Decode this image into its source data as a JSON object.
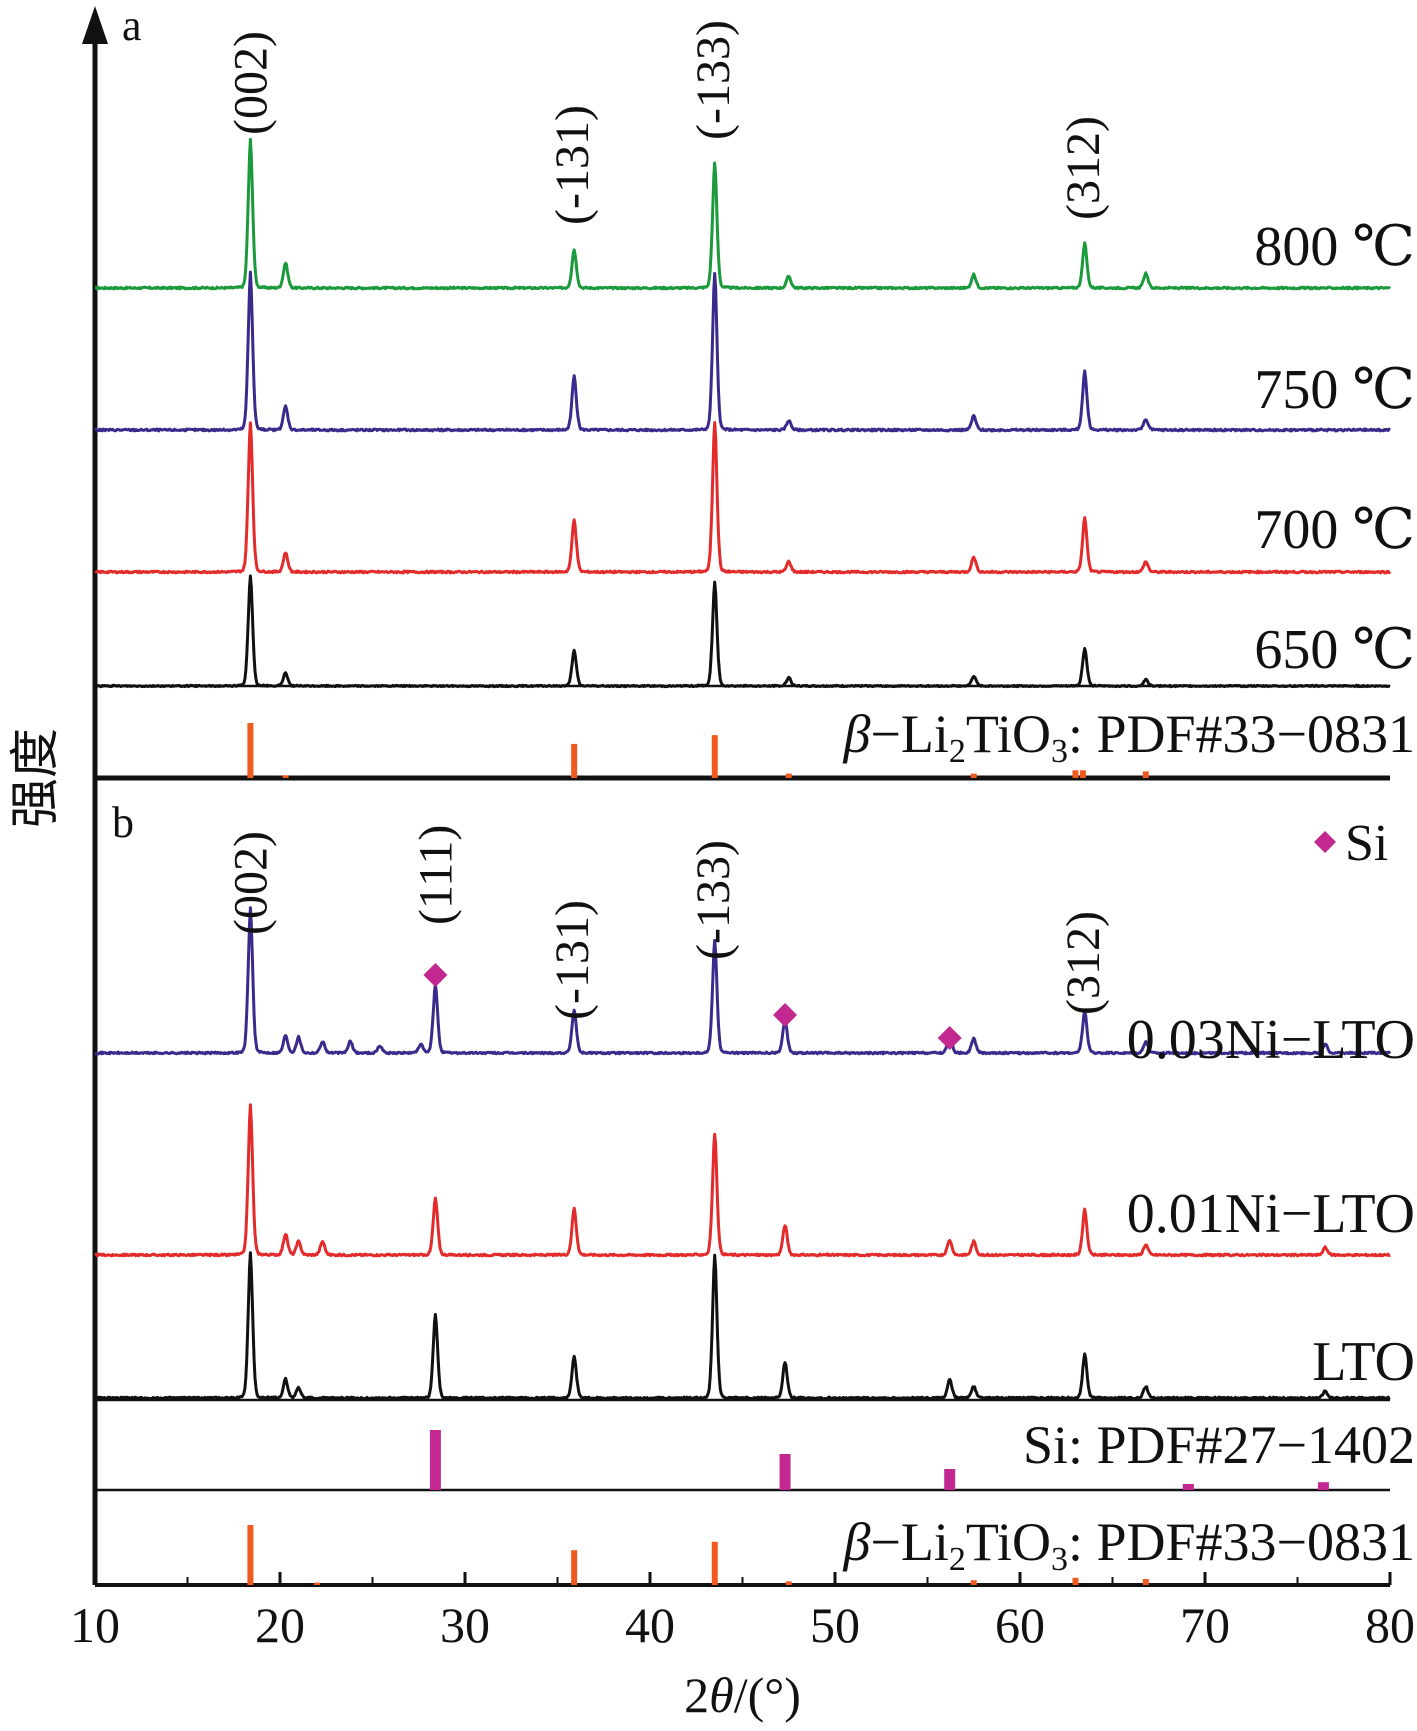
{
  "chart_data": [
    {
      "panel": "a",
      "type": "line",
      "xlabel": "2θ/(°)",
      "ylabel": "强度",
      "xlim": [
        10,
        80
      ],
      "xticks": [
        10,
        20,
        30,
        40,
        50,
        60,
        70,
        80
      ],
      "hkl_labels": [
        {
          "x": 18.5,
          "text": "(002)"
        },
        {
          "x": 35.9,
          "text": "(-131)"
        },
        {
          "x": 43.5,
          "text": "(-133)"
        },
        {
          "x": 63.5,
          "text": "(312)"
        }
      ],
      "series": [
        {
          "name": "800 ℃",
          "color": "#1a9a3a",
          "peaks": [
            [
              18.4,
              100
            ],
            [
              20.3,
              17
            ],
            [
              35.9,
              26
            ],
            [
              43.5,
              84
            ],
            [
              47.5,
              8
            ],
            [
              57.5,
              9
            ],
            [
              63.5,
              30
            ],
            [
              66.8,
              10
            ]
          ]
        },
        {
          "name": "750 ℃",
          "color": "#3b2a8c",
          "peaks": [
            [
              18.4,
              100
            ],
            [
              20.3,
              15
            ],
            [
              35.9,
              34
            ],
            [
              43.5,
              99
            ],
            [
              47.5,
              6
            ],
            [
              57.5,
              9
            ],
            [
              63.5,
              37
            ],
            [
              66.8,
              7
            ]
          ]
        },
        {
          "name": "700 ℃",
          "color": "#e32b2b",
          "peaks": [
            [
              18.4,
              100
            ],
            [
              20.3,
              13
            ],
            [
              35.9,
              35
            ],
            [
              43.5,
              100
            ],
            [
              47.5,
              7
            ],
            [
              57.5,
              10
            ],
            [
              63.5,
              36
            ],
            [
              66.8,
              7
            ]
          ]
        },
        {
          "name": "650 ℃",
          "color": "#111111",
          "peaks": [
            [
              18.4,
              100
            ],
            [
              20.3,
              12
            ],
            [
              35.9,
              32
            ],
            [
              43.5,
              94
            ],
            [
              47.5,
              8
            ],
            [
              57.5,
              9
            ],
            [
              63.5,
              34
            ],
            [
              66.8,
              6
            ]
          ]
        }
      ],
      "reference": {
        "label_prefix": "β",
        "label": "−Li",
        "sub1": "2",
        "mid": "TiO",
        "sub2": "3",
        "suffix": ": PDF#33−0831",
        "color": "#f05a1e",
        "sticks": [
          [
            18.4,
            100
          ],
          [
            20.3,
            5
          ],
          [
            35.9,
            62
          ],
          [
            43.5,
            78
          ],
          [
            47.5,
            8
          ],
          [
            57.5,
            8
          ],
          [
            63.0,
            14
          ],
          [
            63.4,
            14
          ],
          [
            66.8,
            12
          ]
        ]
      }
    },
    {
      "panel": "b",
      "type": "line",
      "xlabel": "2θ/(°)",
      "ylabel": "强度",
      "xlim": [
        10,
        80
      ],
      "xticks": [
        10,
        20,
        30,
        40,
        50,
        60,
        70,
        80
      ],
      "legend": {
        "marker": "◆",
        "text": "Si",
        "color": "#c2288f"
      },
      "hkl_labels": [
        {
          "x": 18.5,
          "text": "(002)"
        },
        {
          "x": 28.5,
          "text": "(111)"
        },
        {
          "x": 35.9,
          "text": "(-131)"
        },
        {
          "x": 43.5,
          "text": "(-133)"
        },
        {
          "x": 63.5,
          "text": "(312)"
        }
      ],
      "si_markers": [
        28.4,
        47.3,
        56.2
      ],
      "series": [
        {
          "name": "0.03Ni−LTO",
          "color": "#3b2a8c",
          "peaks": [
            [
              18.4,
              100
            ],
            [
              20.3,
              12
            ],
            [
              21.0,
              11
            ],
            [
              22.3,
              8
            ],
            [
              23.8,
              8
            ],
            [
              25.4,
              5
            ],
            [
              27.6,
              6
            ],
            [
              28.4,
              47
            ],
            [
              35.9,
              30
            ],
            [
              43.5,
              78
            ],
            [
              47.3,
              23
            ],
            [
              56.2,
              13
            ],
            [
              57.5,
              10
            ],
            [
              63.5,
              29
            ],
            [
              66.8,
              8
            ],
            [
              76.5,
              6
            ]
          ]
        },
        {
          "name": "0.01Ni−LTO",
          "color": "#e32b2b",
          "peaks": [
            [
              18.4,
              100
            ],
            [
              20.3,
              14
            ],
            [
              21.0,
              9
            ],
            [
              22.3,
              9
            ],
            [
              28.4,
              38
            ],
            [
              35.9,
              31
            ],
            [
              43.5,
              81
            ],
            [
              47.3,
              20
            ],
            [
              56.2,
              10
            ],
            [
              57.5,
              9
            ],
            [
              63.5,
              30
            ],
            [
              66.8,
              7
            ],
            [
              76.5,
              5
            ]
          ]
        },
        {
          "name": "LTO",
          "color": "#111111",
          "peaks": [
            [
              18.4,
              100
            ],
            [
              20.3,
              13
            ],
            [
              21.0,
              7
            ],
            [
              28.4,
              58
            ],
            [
              35.9,
              29
            ],
            [
              43.5,
              98
            ],
            [
              47.3,
              25
            ],
            [
              56.2,
              13
            ],
            [
              57.5,
              8
            ],
            [
              63.5,
              30
            ],
            [
              66.8,
              8
            ],
            [
              76.5,
              5
            ]
          ]
        }
      ],
      "references": [
        {
          "label": "Si: PDF#27−1402",
          "color": "#c2288f",
          "sticks": [
            [
              28.4,
              100
            ],
            [
              47.3,
              60
            ],
            [
              56.2,
              35
            ],
            [
              69.1,
              10
            ],
            [
              76.4,
              13
            ]
          ]
        },
        {
          "label_prefix": "β",
          "label": "−Li",
          "sub1": "2",
          "mid": "TiO",
          "sub2": "3",
          "suffix": ": PDF#33−0831",
          "color": "#f05a1e",
          "sticks": [
            [
              18.4,
              100
            ],
            [
              22.0,
              4
            ],
            [
              35.9,
              58
            ],
            [
              43.5,
              72
            ],
            [
              47.5,
              6
            ],
            [
              57.5,
              8
            ],
            [
              63.0,
              12
            ],
            [
              66.8,
              10
            ]
          ]
        }
      ]
    }
  ]
}
